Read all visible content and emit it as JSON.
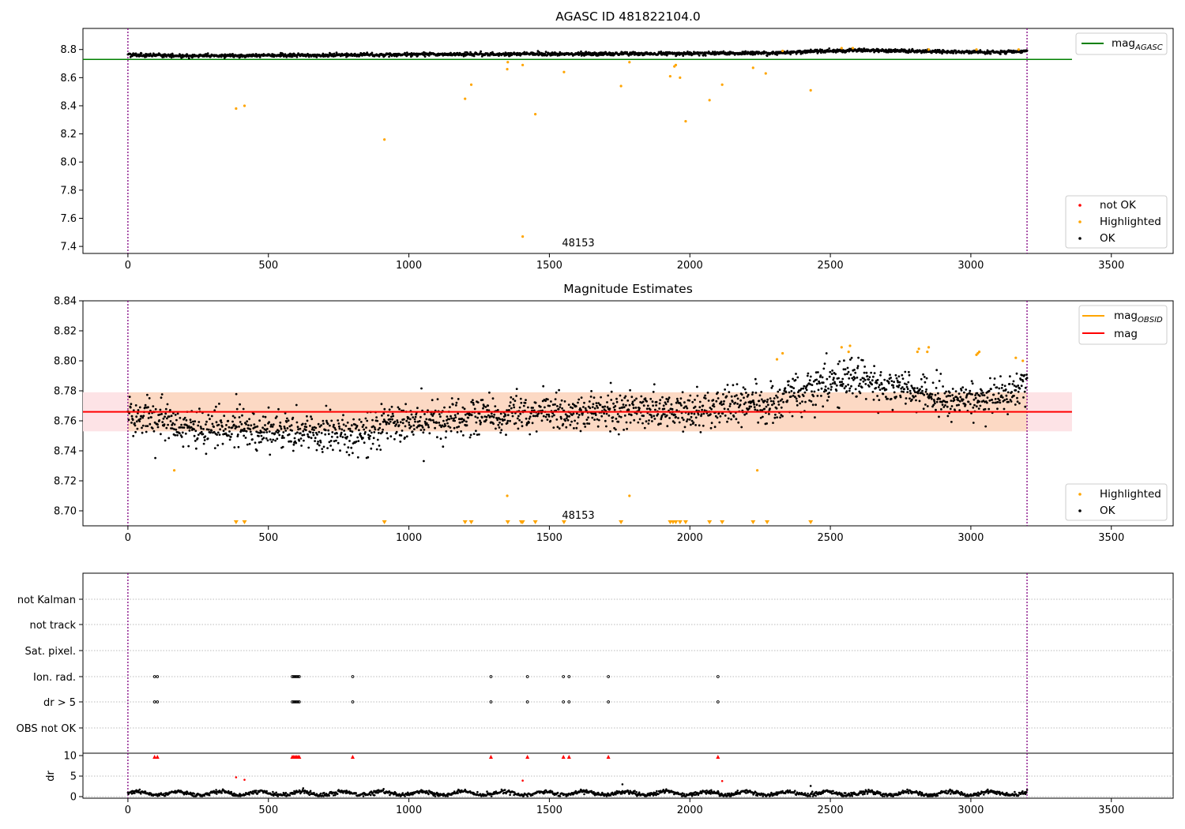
{
  "title": "AGASC ID 481822104.0",
  "colors": {
    "ok": "#000000",
    "highlighted": "#ffa500",
    "not_ok": "#ff0000",
    "mag_agasc": "#008000",
    "mag": "#ff0000",
    "mag_obsid": "#ffa500",
    "band_inner": "#fcd9c4",
    "band_outer": "#fde3e6",
    "obs_boundary": "#800080"
  },
  "obsid_label": "48153",
  "chart_data": [
    {
      "type": "scatter",
      "title": "AGASC ID 481822104.0",
      "xlim": [
        -160,
        3720
      ],
      "ylim": [
        7.35,
        8.95
      ],
      "xticks": [
        0,
        500,
        1000,
        1500,
        2000,
        2500,
        3000,
        3500
      ],
      "yticks": [
        7.4,
        7.6,
        7.8,
        8.0,
        8.2,
        8.4,
        8.6,
        8.8
      ],
      "ytick_labels": [
        "7.4",
        "7.6",
        "7.8",
        "8.0",
        "8.2",
        "8.4",
        "8.6",
        "8.8"
      ],
      "obs_boundaries": [
        0,
        3200
      ],
      "mag_agasc": 8.73,
      "ok_trend": {
        "x": [
          0,
          200,
          500,
          800,
          1000,
          1500,
          2000,
          2300,
          2500,
          2600,
          2900,
          3100,
          3200
        ],
        "y": [
          8.765,
          8.755,
          8.758,
          8.76,
          8.765,
          8.768,
          8.772,
          8.775,
          8.79,
          8.795,
          8.785,
          8.78,
          8.79
        ]
      },
      "ok_noise": 0.012,
      "highlighted": {
        "x": [
          385,
          415,
          913,
          1200,
          1222,
          1350,
          1352,
          1405,
          1450,
          1552,
          1755,
          1785,
          1930,
          1945,
          1950,
          1965,
          1985,
          2070,
          2115,
          2225,
          2270,
          2430,
          2330,
          2540,
          2580,
          2850,
          3020,
          3170
        ],
        "y": [
          8.38,
          8.4,
          8.16,
          8.45,
          8.55,
          8.66,
          8.71,
          8.69,
          8.34,
          8.64,
          8.54,
          8.71,
          8.61,
          8.68,
          8.69,
          8.6,
          8.29,
          8.44,
          8.55,
          8.67,
          8.63,
          8.51,
          8.79,
          8.81,
          8.81,
          8.8,
          8.8,
          8.8
        ]
      },
      "outlier": {
        "x": 1405,
        "y": 7.47
      },
      "legend_lines": [
        "mag_AGASC"
      ],
      "legend_points": [
        "not OK",
        "Highlighted",
        "OK"
      ]
    },
    {
      "type": "scatter",
      "title": "Magnitude Estimates",
      "xlim": [
        -160,
        3720
      ],
      "ylim": [
        8.69,
        8.84
      ],
      "xticks": [
        0,
        500,
        1000,
        1500,
        2000,
        2500,
        3000,
        3500
      ],
      "yticks": [
        8.7,
        8.72,
        8.74,
        8.76,
        8.78,
        8.8,
        8.82,
        8.84
      ],
      "ytick_labels": [
        "8.70",
        "8.72",
        "8.74",
        "8.76",
        "8.78",
        "8.80",
        "8.82",
        "8.84"
      ],
      "mag": 8.766,
      "mag_band": [
        8.753,
        8.779
      ],
      "mag_obsid": 8.766,
      "ok_trend": {
        "x": [
          0,
          200,
          500,
          800,
          1000,
          1500,
          2000,
          2300,
          2500,
          2600,
          2900,
          3100,
          3200
        ],
        "y": [
          8.765,
          8.755,
          8.753,
          8.752,
          8.76,
          8.765,
          8.768,
          8.772,
          8.785,
          8.788,
          8.772,
          8.775,
          8.785
        ]
      },
      "ok_noise": 0.0065,
      "highlighted": {
        "x": [
          165,
          1350,
          1785,
          2240,
          2310,
          2330,
          2540,
          2565,
          2570,
          2810,
          2815,
          2845,
          2850,
          3020,
          3025,
          3030,
          3160,
          3185
        ],
        "y": [
          8.727,
          8.71,
          8.71,
          8.727,
          8.801,
          8.805,
          8.809,
          8.806,
          8.81,
          8.806,
          8.808,
          8.806,
          8.809,
          8.804,
          8.805,
          8.806,
          8.802,
          8.8
        ]
      },
      "lower_markers": [
        385,
        415,
        913,
        1200,
        1222,
        1352,
        1400,
        1405,
        1450,
        1552,
        1755,
        1930,
        1940,
        1950,
        1965,
        1985,
        2070,
        2115,
        2225,
        2275,
        2430
      ],
      "legend_lines": [
        "mag_OBSID",
        "mag"
      ],
      "legend_points": [
        "Highlighted",
        "OK"
      ]
    },
    {
      "type": "scatter",
      "title": "",
      "xlim": [
        -160,
        3720
      ],
      "xticks": [
        0,
        500,
        1000,
        1500,
        2000,
        2500,
        3000,
        3500
      ],
      "flag_categories": [
        "not Kalman",
        "not track",
        "Sat. pixel.",
        "Ion. rad.",
        "dr > 5",
        "OBS not OK"
      ],
      "ion_rad_x": [
        95,
        105,
        585,
        590,
        595,
        600,
        605,
        610,
        800,
        1292,
        1422,
        1550,
        1570,
        1710,
        2100
      ],
      "dr_gt5_x": [
        95,
        105,
        585,
        590,
        595,
        600,
        605,
        610,
        800,
        1292,
        1422,
        1550,
        1570,
        1710,
        2100
      ]
    },
    {
      "type": "scatter",
      "title": "",
      "ylabel": "dr",
      "xlim": [
        -160,
        3720
      ],
      "ylim": [
        0,
        10
      ],
      "xticks": [
        0,
        500,
        1000,
        1500,
        2000,
        2500,
        3000,
        3500
      ],
      "yticks": [
        0,
        5,
        10
      ],
      "ytick_labels": [
        "0",
        "5",
        "10"
      ],
      "red_markers_x": [
        95,
        105,
        585,
        590,
        595,
        600,
        605,
        610,
        800,
        1292,
        1422,
        1550,
        1570,
        1710,
        2100
      ],
      "red_points": {
        "x": [
          385,
          415,
          1405,
          2115
        ],
        "y": [
          4.7,
          4.1,
          3.9,
          3.8
        ]
      },
      "black_spikes": {
        "x": [
          1760,
          2430
        ],
        "y": [
          3.0,
          2.6
        ]
      }
    }
  ]
}
